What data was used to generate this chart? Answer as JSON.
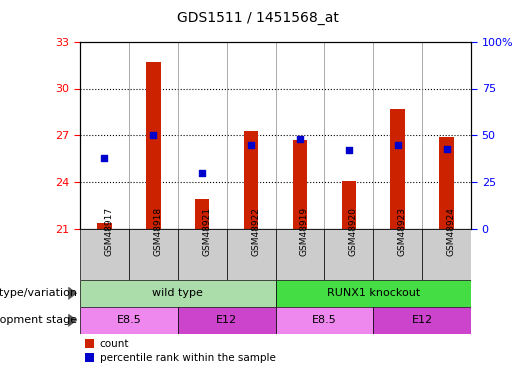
{
  "title": "GDS1511 / 1451568_at",
  "samples": [
    "GSM48917",
    "GSM48918",
    "GSM48921",
    "GSM48922",
    "GSM48919",
    "GSM48920",
    "GSM48923",
    "GSM48924"
  ],
  "count_values": [
    21.4,
    31.7,
    22.9,
    27.3,
    26.7,
    24.1,
    28.7,
    26.9
  ],
  "percentile_values": [
    38,
    50,
    30,
    45,
    48,
    42,
    45,
    43
  ],
  "ymin": 21,
  "ymax": 33,
  "yticks": [
    21,
    24,
    27,
    30,
    33
  ],
  "y2min": 0,
  "y2max": 100,
  "y2ticks": [
    0,
    25,
    50,
    75,
    100
  ],
  "bar_color": "#cc2200",
  "dot_color": "#0000cc",
  "bg_color": "#ffffff",
  "genotype_groups": [
    {
      "label": "wild type",
      "start": 0,
      "end": 4,
      "color": "#aaddaa"
    },
    {
      "label": "RUNX1 knockout",
      "start": 4,
      "end": 8,
      "color": "#44dd44"
    }
  ],
  "dev_stage_groups": [
    {
      "label": "E8.5",
      "start": 0,
      "end": 2,
      "color": "#ee88ee"
    },
    {
      "label": "E12",
      "start": 2,
      "end": 4,
      "color": "#cc44cc"
    },
    {
      "label": "E8.5",
      "start": 4,
      "end": 6,
      "color": "#ee88ee"
    },
    {
      "label": "E12",
      "start": 6,
      "end": 8,
      "color": "#cc44cc"
    }
  ],
  "legend_count_label": "count",
  "legend_pct_label": "percentile rank within the sample",
  "genotype_label": "genotype/variation",
  "devstage_label": "development stage",
  "bar_width": 0.3,
  "sample_bg_color": "#cccccc",
  "arrow_color": "#555555"
}
